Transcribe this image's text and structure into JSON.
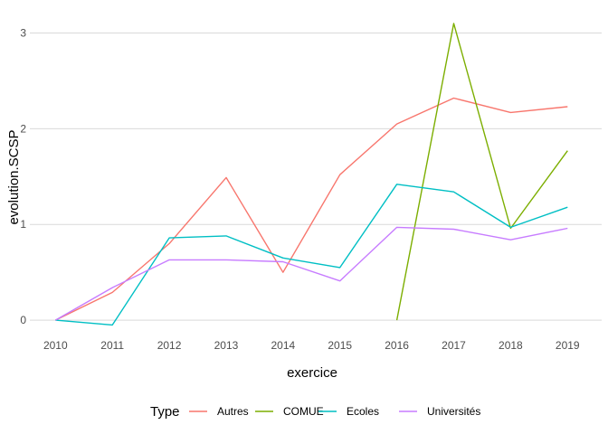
{
  "chart_data": {
    "type": "line",
    "xlabel": "exercice",
    "ylabel": "evolution.SCSP",
    "x": [
      2010,
      2011,
      2012,
      2013,
      2014,
      2015,
      2016,
      2017,
      2018,
      2019
    ],
    "x_tick_labels": [
      "2010",
      "2011",
      "2012",
      "2013",
      "2014",
      "2015",
      "2016",
      "2017",
      "2018",
      "2019"
    ],
    "y_ticks": [
      0,
      1,
      2,
      3
    ],
    "y_tick_labels": [
      "0",
      "1",
      "2",
      "3"
    ],
    "xlim": [
      2009.55,
      2019.6
    ],
    "ylim": [
      -0.15,
      3.25
    ],
    "grid": true,
    "legend": {
      "title": "Type",
      "position": "bottom"
    },
    "series": [
      {
        "name": "Autres",
        "color": "#F8766D",
        "values": [
          0,
          0.29,
          0.8,
          1.49,
          0.5,
          1.52,
          2.05,
          2.32,
          2.17,
          2.23
        ]
      },
      {
        "name": "COMUE",
        "color": "#7CAE00",
        "values": [
          null,
          null,
          null,
          null,
          null,
          null,
          0,
          3.1,
          0.96,
          1.77
        ]
      },
      {
        "name": "Ecoles",
        "color": "#00BFC4",
        "values": [
          0,
          -0.05,
          0.86,
          0.88,
          0.65,
          0.55,
          1.42,
          1.34,
          0.97,
          1.18
        ]
      },
      {
        "name": "Universités",
        "color": "#C77CFF",
        "values": [
          0,
          0.34,
          0.63,
          0.63,
          0.61,
          0.41,
          0.97,
          0.95,
          0.84,
          0.96
        ]
      }
    ]
  }
}
